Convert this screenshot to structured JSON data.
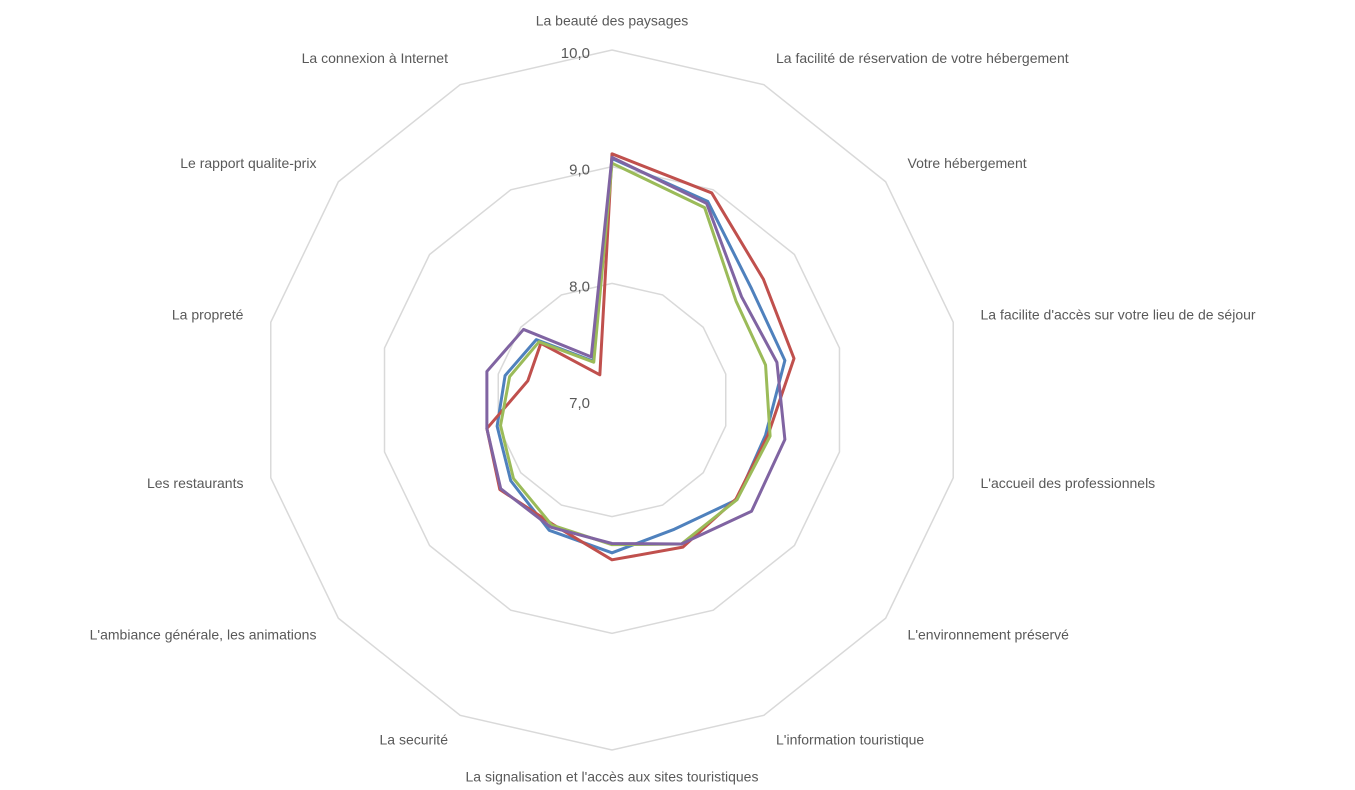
{
  "chart_data": {
    "type": "radar",
    "categories": [
      "La beauté des paysages",
      "La facilité de réservation de votre hébergement",
      "Votre hébergement",
      "La facilite d'accès sur votre lieu de de séjour",
      "L'accueil des professionnels",
      "L'environnement préservé",
      "L'information touristique",
      "La signalisation et l'accès aux sites touristiques",
      "La securité",
      "L'ambiance générale, les animations",
      "Les restaurants",
      "La propreté",
      "Le rapport qualite-prix",
      "La connexion à Internet"
    ],
    "series": [
      {
        "color": "#4f81bd",
        "values": [
          9.07,
          8.89,
          8.53,
          8.52,
          8.35,
          8.37,
          8.23,
          8.31,
          8.24,
          8.11,
          8.01,
          7.94,
          7.83,
          7.37
        ]
      },
      {
        "color": "#c0504d",
        "values": [
          9.11,
          8.97,
          8.66,
          8.6,
          8.37,
          8.36,
          8.4,
          8.37,
          8.18,
          8.23,
          8.1,
          7.74,
          7.78,
          7.24
        ]
      },
      {
        "color": "#9bbb59",
        "values": [
          9.03,
          8.83,
          8.36,
          8.35,
          8.39,
          8.37,
          8.37,
          8.24,
          8.19,
          8.08,
          7.98,
          7.9,
          7.8,
          7.36
        ]
      },
      {
        "color": "#8064a2",
        "values": [
          9.08,
          8.87,
          8.42,
          8.45,
          8.52,
          8.53,
          8.37,
          8.23,
          8.21,
          8.22,
          8.1,
          8.1,
          7.97,
          7.41
        ]
      }
    ],
    "ylim": [
      7,
      10
    ],
    "yticks": [
      {
        "value": 7,
        "label": "7,0"
      },
      {
        "value": 8,
        "label": "8,0"
      },
      {
        "value": 9,
        "label": "9,0"
      },
      {
        "value": 10,
        "label": "10,0"
      }
    ],
    "grid": true
  }
}
